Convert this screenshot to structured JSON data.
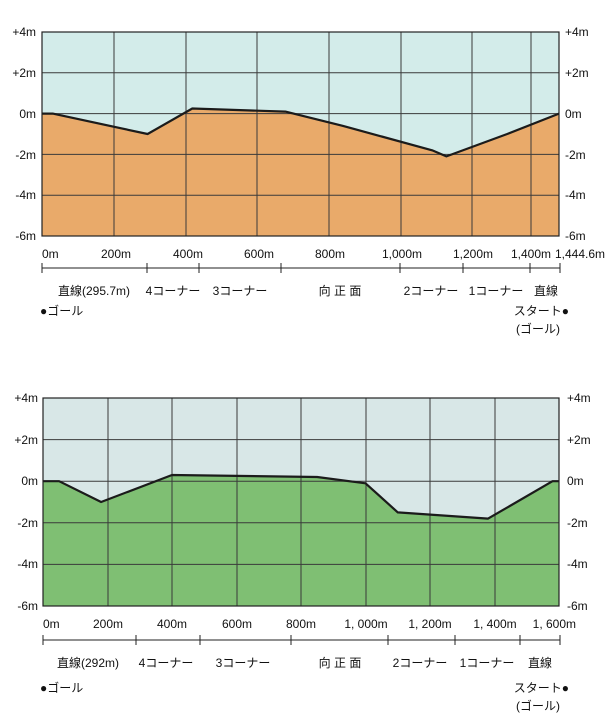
{
  "charts": [
    {
      "colors": {
        "sky": "#d3ecea",
        "ground": "#e9aa6a"
      },
      "y_ticks": [
        "+4m",
        "+2m",
        "0m",
        "-2m",
        "-4m",
        "-6m"
      ],
      "y_ticks_right": [
        "+4m",
        "+2m",
        "0m",
        "-2m",
        "-4m",
        "-6m"
      ],
      "x_ticks": [
        "0m",
        "200m",
        "400m",
        "600m",
        "800m",
        "1,000m",
        "1,200m",
        "1,400m",
        "1,444.6m"
      ],
      "segments": [
        "直線(295.7m)",
        "4コーナー",
        "3コーナー",
        "向 正 面",
        "2コーナー",
        "1コーナー",
        "直線"
      ],
      "goal_label": "●ゴール",
      "start_label": "スタート●",
      "start_sub": "(ゴール)"
    },
    {
      "colors": {
        "sky": "#d8e7e7",
        "ground": "#7fbf73"
      },
      "y_ticks": [
        "+4m",
        "+2m",
        "0m",
        "-2m",
        "-4m",
        "-6m"
      ],
      "y_ticks_right": [
        "+4m",
        "+2m",
        "0m",
        "-2m",
        "-4m",
        "-6m"
      ],
      "x_ticks": [
        "0m",
        "200m",
        "400m",
        "600m",
        "800m",
        "1, 000m",
        "1, 200m",
        "1, 400m",
        "1, 600m"
      ],
      "segments": [
        "直線(292m)",
        "4コーナー",
        "3コーナー",
        "向 正 面",
        "2コーナー",
        "1コーナー",
        "直線"
      ],
      "goal_label": "●ゴール",
      "start_label": "スタート●",
      "start_sub": "(ゴール)"
    }
  ],
  "chart_data": [
    {
      "type": "area",
      "x_unit": "m",
      "y_unit": "m",
      "xlim": [
        0,
        1444.6
      ],
      "ylim": [
        -6,
        4
      ],
      "x": [
        0,
        30,
        295,
        420,
        680,
        840,
        1090,
        1130,
        1300,
        1444.6
      ],
      "y": [
        0,
        0,
        -1,
        0.25,
        0.1,
        -0.6,
        -1.8,
        -2.1,
        -1.0,
        0
      ]
    },
    {
      "type": "area",
      "x_unit": "m",
      "y_unit": "m",
      "xlim": [
        0,
        1600
      ],
      "ylim": [
        -6,
        4
      ],
      "x": [
        0,
        50,
        180,
        400,
        850,
        1000,
        1100,
        1380,
        1580,
        1600
      ],
      "y": [
        0,
        0,
        -1,
        0.3,
        0.2,
        -0.1,
        -1.5,
        -1.8,
        0,
        0
      ]
    }
  ]
}
